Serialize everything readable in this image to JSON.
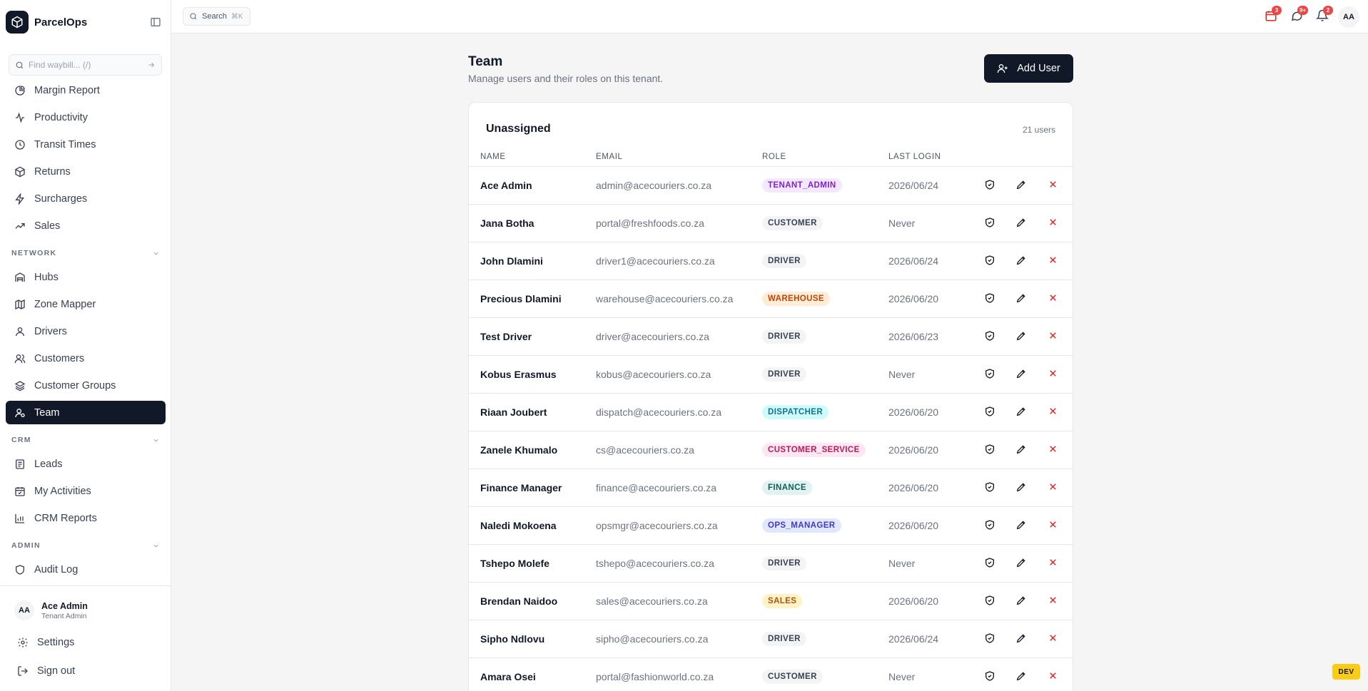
{
  "app": {
    "name": "ParcelOps"
  },
  "sidebar": {
    "search_placeholder": "Find waybill... (/)",
    "items_top": [
      {
        "label": "Margin Report",
        "icon": "pie-chart-icon"
      },
      {
        "label": "Productivity",
        "icon": "activity-icon"
      },
      {
        "label": "Transit Times",
        "icon": "clock-icon"
      },
      {
        "label": "Returns",
        "icon": "package-icon"
      },
      {
        "label": "Surcharges",
        "icon": "zap-icon"
      },
      {
        "label": "Sales",
        "icon": "trending-up-icon"
      }
    ],
    "section_network": "NETWORK",
    "items_network": [
      {
        "label": "Hubs",
        "icon": "warehouse-icon"
      },
      {
        "label": "Zone Mapper",
        "icon": "map-icon"
      },
      {
        "label": "Drivers",
        "icon": "user-icon"
      },
      {
        "label": "Customers",
        "icon": "users-icon"
      },
      {
        "label": "Customer Groups",
        "icon": "layers-icon"
      },
      {
        "label": "Team",
        "icon": "user-team-icon"
      }
    ],
    "section_crm": "CRM",
    "items_crm": [
      {
        "label": "Leads",
        "icon": "clipboard-icon"
      },
      {
        "label": "My Activities",
        "icon": "calendar-check-icon"
      },
      {
        "label": "CRM Reports",
        "icon": "bar-chart-icon"
      }
    ],
    "section_admin": "ADMIN",
    "items_admin": [
      {
        "label": "Audit Log",
        "icon": "shield-icon"
      }
    ],
    "user": {
      "initials": "AA",
      "name": "Ace Admin",
      "role": "Tenant Admin"
    },
    "settings_label": "Settings",
    "signout_label": "Sign out"
  },
  "topbar": {
    "search_label": "Search",
    "search_shortcut": "⌘K",
    "badges": {
      "deliveries": "3",
      "messages": "9+",
      "notifications": "2"
    },
    "avatar_initials": "AA"
  },
  "page": {
    "title": "Team",
    "subtitle": "Manage users and their roles on this tenant.",
    "add_button": "Add User"
  },
  "table": {
    "group_title": "Unassigned",
    "count": "21 users",
    "headers": {
      "name": "NAME",
      "email": "EMAIL",
      "role": "ROLE",
      "last_login": "LAST LOGIN"
    },
    "rows": [
      {
        "name": "Ace Admin",
        "email": "admin@acecouriers.co.za",
        "role": "TENANT_ADMIN",
        "last_login": "2026/06/24"
      },
      {
        "name": "Jana Botha",
        "email": "portal@freshfoods.co.za",
        "role": "CUSTOMER",
        "last_login": "Never"
      },
      {
        "name": "John Dlamini",
        "email": "driver1@acecouriers.co.za",
        "role": "DRIVER",
        "last_login": "2026/06/24"
      },
      {
        "name": "Precious Dlamini",
        "email": "warehouse@acecouriers.co.za",
        "role": "WAREHOUSE",
        "last_login": "2026/06/20"
      },
      {
        "name": "Test Driver",
        "email": "driver@acecouriers.co.za",
        "role": "DRIVER",
        "last_login": "2026/06/23"
      },
      {
        "name": "Kobus Erasmus",
        "email": "kobus@acecouriers.co.za",
        "role": "DRIVER",
        "last_login": "Never"
      },
      {
        "name": "Riaan Joubert",
        "email": "dispatch@acecouriers.co.za",
        "role": "DISPATCHER",
        "last_login": "2026/06/20"
      },
      {
        "name": "Zanele Khumalo",
        "email": "cs@acecouriers.co.za",
        "role": "CUSTOMER_SERVICE",
        "last_login": "2026/06/20"
      },
      {
        "name": "Finance Manager",
        "email": "finance@acecouriers.co.za",
        "role": "FINANCE",
        "last_login": "2026/06/20"
      },
      {
        "name": "Naledi Mokoena",
        "email": "opsmgr@acecouriers.co.za",
        "role": "OPS_MANAGER",
        "last_login": "2026/06/20"
      },
      {
        "name": "Tshepo Molefe",
        "email": "tshepo@acecouriers.co.za",
        "role": "DRIVER",
        "last_login": "Never"
      },
      {
        "name": "Brendan Naidoo",
        "email": "sales@acecouriers.co.za",
        "role": "SALES",
        "last_login": "2026/06/20"
      },
      {
        "name": "Sipho Ndlovu",
        "email": "sipho@acecouriers.co.za",
        "role": "DRIVER",
        "last_login": "2026/06/24"
      },
      {
        "name": "Amara Osei",
        "email": "portal@fashionworld.co.za",
        "role": "CUSTOMER",
        "last_login": "Never"
      }
    ]
  },
  "role_colors": {
    "TENANT_ADMIN": {
      "bg": "#f3e8ff",
      "fg": "#7e22ce"
    },
    "CUSTOMER": {
      "bg": "#f3f4f6",
      "fg": "#374151"
    },
    "DRIVER": {
      "bg": "#f3f4f6",
      "fg": "#374151"
    },
    "WAREHOUSE": {
      "bg": "#ffedd5",
      "fg": "#c2410c"
    },
    "DISPATCHER": {
      "bg": "#cffafe",
      "fg": "#0e7490"
    },
    "CUSTOMER_SERVICE": {
      "bg": "#fce7f3",
      "fg": "#be185d"
    },
    "FINANCE": {
      "bg": "#e0f2f1",
      "fg": "#115e59"
    },
    "OPS_MANAGER": {
      "bg": "#e0e7ff",
      "fg": "#4338ca"
    },
    "SALES": {
      "bg": "#fef3c7",
      "fg": "#b45309"
    }
  },
  "env_badge": "DEV"
}
